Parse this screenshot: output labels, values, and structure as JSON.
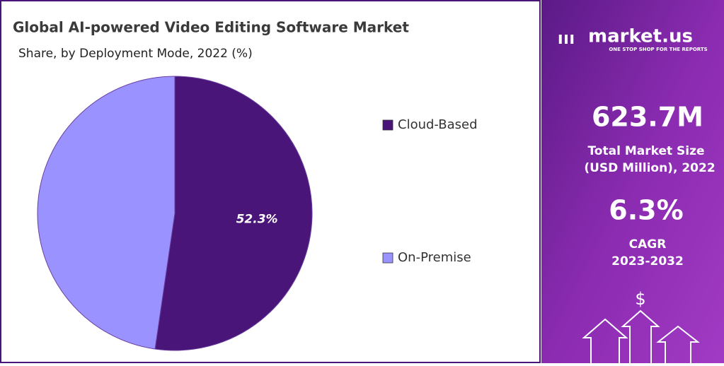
{
  "chart_data": {
    "type": "pie",
    "title": "Global AI-powered Video Editing Software Market",
    "subtitle": "Share, by Deployment Mode, 2022 (%)",
    "categories": [
      "Cloud-Based",
      "On-Premise"
    ],
    "values": [
      52.3,
      47.7
    ],
    "value_labels": [
      "52.3%",
      null
    ],
    "colors": [
      "#4a1578",
      "#9a93ff"
    ],
    "legend": "right"
  },
  "side_panel": {
    "brand": "market.us",
    "tagline": "ONE STOP SHOP FOR THE REPORTS",
    "market_size": "623.7M",
    "market_size_label": [
      "Total Market Size",
      "(USD Million), 2022"
    ],
    "cagr": "6.3%",
    "cagr_label": [
      "CAGR",
      "2023-2032"
    ],
    "currency_icon": "$"
  }
}
